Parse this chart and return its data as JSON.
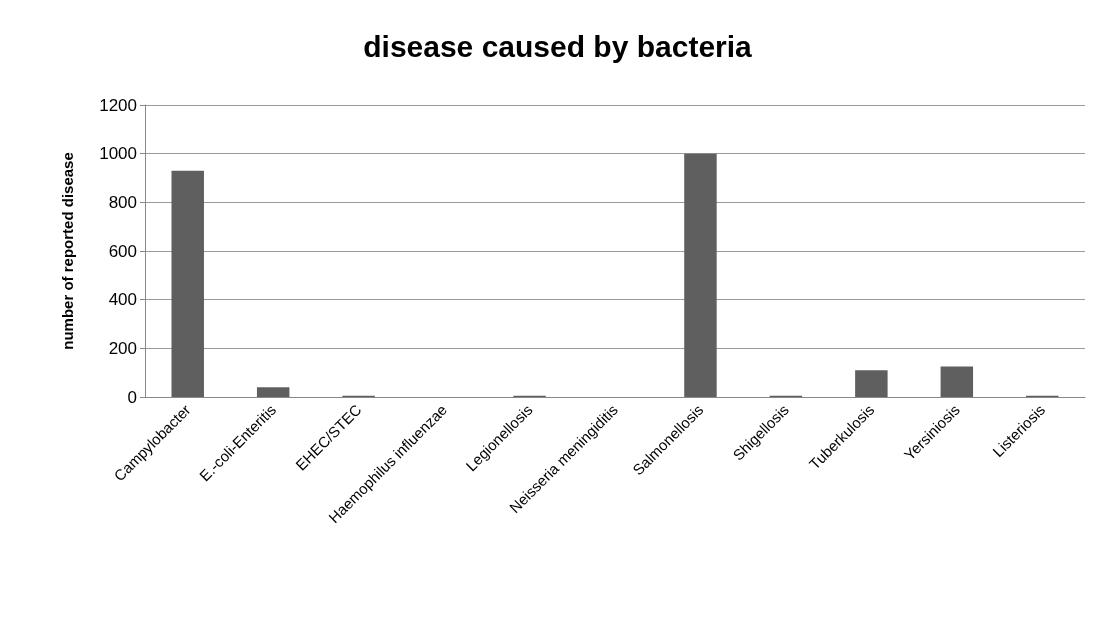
{
  "chart_data": {
    "type": "bar",
    "title": "disease caused by bacteria",
    "ylabel": "number of reported disease",
    "categories": [
      "Campylobacter",
      "E.-coli-Enteritis",
      "EHEC/STEC",
      "Haemophilus influenzae",
      "Legionellosis",
      "Neisseria meningiditis",
      "Salmonellosis",
      "Shigellosis",
      "Tuberkulosis",
      "Yersiniosis",
      "Listeriosis"
    ],
    "values": [
      930,
      40,
      5,
      0,
      5,
      0,
      1000,
      5,
      110,
      125,
      5
    ],
    "color": "#5f5f5f",
    "ylim": [
      0,
      1200
    ],
    "yticks": [
      0,
      200,
      400,
      600,
      800,
      1000,
      1200
    ],
    "grid": "y"
  }
}
